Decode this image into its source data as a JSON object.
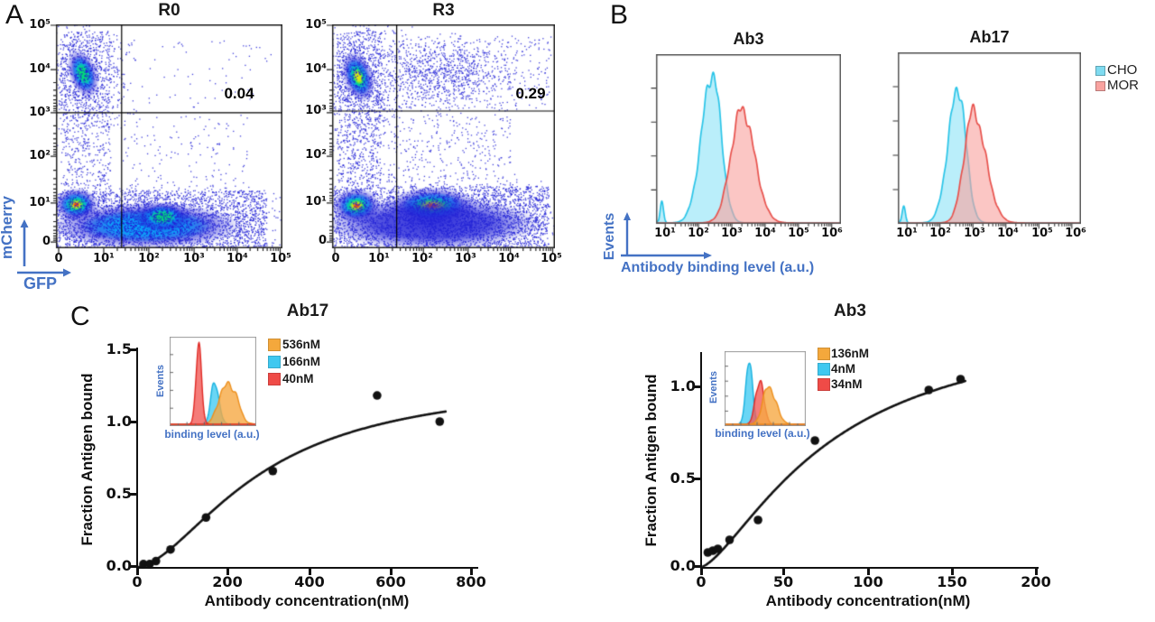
{
  "colors": {
    "accent_blue": "#4472C4",
    "cho_cyan": "#7FDBF0",
    "mor_red": "#F9A3A0",
    "flow_dot_blue": "#2323D7",
    "curve_black": "#111111",
    "inset_orange": "#F4A83C",
    "inset_cyan": "#3FC8F0",
    "inset_red": "#EF4B47"
  },
  "panels": {
    "A": {
      "label": "A",
      "ylabel": "mCherry",
      "xlabel": "GFP",
      "x_ticks": [
        "0",
        "10¹",
        "10²",
        "10³",
        "10⁴",
        "10⁵"
      ],
      "y_ticks": [
        "10⁵",
        "10⁴",
        "10³",
        "10²",
        "10¹",
        "0"
      ],
      "plots": [
        {
          "title": "R0",
          "quadrant_value": "0.04"
        },
        {
          "title": "R3",
          "quadrant_value": "0.29"
        }
      ]
    },
    "B": {
      "label": "B",
      "ylabel": "Events",
      "xlabel": "Antibody binding level (a.u.)",
      "x_ticks": [
        "10¹",
        "10²",
        "10³",
        "10⁴",
        "10⁵",
        "10⁶"
      ],
      "plots": [
        {
          "title": "Ab3"
        },
        {
          "title": "Ab17"
        }
      ],
      "legend": [
        {
          "label": "CHO",
          "color": "#7FDBF0"
        },
        {
          "label": "MOR",
          "color": "#F9A3A0"
        }
      ]
    },
    "C": {
      "label": "C",
      "left": {
        "title": "Ab17",
        "ylabel": "Fraction Antigen bound",
        "xlabel": "Antibody concentration(nM)",
        "y_ticks": [
          "1.5",
          "1.0",
          "0.5",
          "0.0"
        ],
        "x_ticks": [
          "0",
          "200",
          "400",
          "600",
          "800"
        ],
        "inset": {
          "ylabel": "Events",
          "xlabel": "binding level (a.u.)",
          "legend": [
            {
              "label": "536nM",
              "color": "#F4A83C"
            },
            {
              "label": "166nM",
              "color": "#3FC8F0"
            },
            {
              "label": "40nM",
              "color": "#EF4B47"
            }
          ]
        }
      },
      "right": {
        "title": "Ab3",
        "ylabel": "Fraction Antigen bound",
        "xlabel": "Antibody concentration(nM)",
        "y_ticks": [
          "1.0",
          "0.5",
          "0.0"
        ],
        "x_ticks": [
          "0",
          "50",
          "100",
          "150",
          "200"
        ],
        "inset": {
          "ylabel": "Events",
          "xlabel": "binding level (a.u.)",
          "legend": [
            {
              "label": "136nM",
              "color": "#F4A83C"
            },
            {
              "label": "4nM",
              "color": "#3FC8F0"
            },
            {
              "label": "34nM",
              "color": "#EF4B47"
            }
          ]
        }
      }
    }
  },
  "chart_data": [
    {
      "id": "flow_r0",
      "type": "scatter",
      "subtype": "flow-density",
      "title": "R0",
      "xlabel": "GFP",
      "ylabel": "mCherry",
      "x_tick_values": [
        "0",
        "1e1",
        "1e2",
        "1e3",
        "1e4",
        "1e5"
      ],
      "y_tick_values": [
        "1e5",
        "1e4",
        "1e3",
        "1e2",
        "1e1",
        "0"
      ],
      "quadrant_percent_upper_right": 0.04,
      "gates": {
        "vx": 0.29,
        "hy": 0.605
      },
      "clusters": [
        {
          "x": 0.12,
          "y": 0.78,
          "rx": 0.065,
          "ry": 0.115,
          "rot": -20,
          "i": 0.8
        },
        {
          "x": 0.09,
          "y": 0.195,
          "rx": 0.1,
          "ry": 0.075,
          "rot": 0,
          "i": 1.0
        },
        {
          "x": 0.4,
          "y": 0.1,
          "rx": 0.42,
          "ry": 0.105,
          "rot": 0,
          "i": 0.45
        },
        {
          "x": 0.47,
          "y": 0.14,
          "rx": 0.13,
          "ry": 0.07,
          "rot": 0,
          "i": 0.62
        }
      ],
      "scatter": [
        {
          "t": "u",
          "x0": 0.0,
          "x1": 0.93,
          "y0": 0.0,
          "y1": 0.26,
          "n": 2400
        },
        {
          "t": "u",
          "x0": 0.02,
          "x1": 0.24,
          "y0": 0.26,
          "y1": 0.97,
          "n": 650
        },
        {
          "t": "g",
          "cx": 0.12,
          "cy": 0.78,
          "sx": 0.1,
          "sy": 0.14,
          "n": 900
        },
        {
          "t": "u",
          "x0": 0.3,
          "x1": 0.95,
          "y0": 0.63,
          "y1": 0.93,
          "n": 60
        },
        {
          "t": "u",
          "x0": 0.3,
          "x1": 0.85,
          "y0": 0.26,
          "y1": 0.6,
          "n": 140
        },
        {
          "t": "g",
          "cx": 0.4,
          "cy": 0.12,
          "sx": 0.3,
          "sy": 0.07,
          "n": 1500
        }
      ]
    },
    {
      "id": "flow_r3",
      "type": "scatter",
      "subtype": "flow-density",
      "title": "R3",
      "xlabel": "GFP",
      "ylabel": "mCherry",
      "x_tick_values": [
        "0",
        "1e1",
        "1e2",
        "1e3",
        "1e4",
        "1e5"
      ],
      "y_tick_values": [
        "1e5",
        "1e4",
        "1e3",
        "1e2",
        "1e1",
        "0"
      ],
      "quadrant_percent_upper_right": 0.29,
      "gates": {
        "vx": 0.29,
        "hy": 0.613
      },
      "clusters": [
        {
          "x": 0.117,
          "y": 0.766,
          "rx": 0.07,
          "ry": 0.12,
          "rot": -20,
          "i": 0.88
        },
        {
          "x": 0.11,
          "y": 0.19,
          "rx": 0.11,
          "ry": 0.08,
          "rot": 0,
          "i": 1.0
        },
        {
          "x": 0.45,
          "y": 0.19,
          "rx": 0.2,
          "ry": 0.085,
          "rot": 0,
          "i": 1.0
        },
        {
          "x": 0.45,
          "y": 0.11,
          "rx": 0.48,
          "ry": 0.12,
          "rot": 0,
          "i": 0.42
        }
      ],
      "scatter": [
        {
          "t": "u",
          "x0": 0.0,
          "x1": 0.97,
          "y0": 0.0,
          "y1": 0.28,
          "n": 2600
        },
        {
          "t": "u",
          "x0": 0.02,
          "x1": 0.22,
          "y0": 0.28,
          "y1": 0.97,
          "n": 800
        },
        {
          "t": "g",
          "cx": 0.117,
          "cy": 0.77,
          "sx": 0.1,
          "sy": 0.15,
          "n": 900
        },
        {
          "t": "g",
          "cx": 0.5,
          "cy": 0.78,
          "sx": 0.14,
          "sy": 0.07,
          "n": 800
        },
        {
          "t": "u",
          "x0": 0.28,
          "x1": 0.98,
          "y0": 0.62,
          "y1": 0.95,
          "n": 350
        },
        {
          "t": "u",
          "x0": 0.25,
          "x1": 0.8,
          "y0": 0.28,
          "y1": 0.6,
          "n": 300
        },
        {
          "t": "g",
          "cx": 0.48,
          "cy": 0.13,
          "sx": 0.3,
          "sy": 0.08,
          "n": 1500
        }
      ]
    },
    {
      "id": "hist_ab3",
      "type": "area",
      "subtype": "flow-histogram",
      "title": "Ab3",
      "xlabel": "Antibody binding level (a.u.)",
      "ylabel": "Events",
      "x_range_log10": [
        1,
        6
      ],
      "series": [
        {
          "name": "CHO",
          "mu": 2.42,
          "sl": 0.33,
          "sr": 0.26,
          "h": 0.92,
          "spike": 0.13,
          "fill": "#8FE3F7",
          "stroke": "#2BC5E8"
        },
        {
          "name": "MOR",
          "mu": 3.3,
          "sl": 0.33,
          "sr": 0.38,
          "h": 0.7,
          "spike": 0,
          "fill": "#F9A3A0",
          "stroke": "#E8524D"
        }
      ]
    },
    {
      "id": "hist_ab17",
      "type": "area",
      "subtype": "flow-histogram",
      "title": "Ab17",
      "xlabel": "Antibody binding level (a.u.)",
      "ylabel": "Events",
      "x_range_log10": [
        1,
        6
      ],
      "series": [
        {
          "name": "CHO",
          "mu": 2.55,
          "sl": 0.3,
          "sr": 0.24,
          "h": 0.82,
          "spike": 0.1,
          "fill": "#8FE3F7",
          "stroke": "#2BC5E8"
        },
        {
          "name": "MOR",
          "mu": 3.0,
          "sl": 0.27,
          "sr": 0.38,
          "h": 0.68,
          "spike": 0,
          "fill": "#F9A3A0",
          "stroke": "#E8524D"
        }
      ]
    },
    {
      "id": "curve_ab17",
      "type": "scatter",
      "subtype": "binding-curve",
      "title": "Ab17",
      "xlabel": "Antibody concentration(nM)",
      "ylabel": "Fraction Antigen bound",
      "xlim": [
        0,
        800
      ],
      "ylim": [
        0,
        1.5
      ],
      "x_tick_values": [
        0,
        200,
        400,
        600,
        800
      ],
      "y_tick_values": [
        0.0,
        0.5,
        1.0,
        1.5
      ],
      "points": [
        [
          15,
          0.02
        ],
        [
          30,
          0.02
        ],
        [
          45,
          0.04
        ],
        [
          80,
          0.12
        ],
        [
          165,
          0.34
        ],
        [
          325,
          0.66
        ],
        [
          575,
          1.18
        ],
        [
          725,
          1.0
        ]
      ],
      "fit": {
        "top": 1.3,
        "ec50": 300,
        "hill": 1.7
      },
      "fit_x_end": 740,
      "inset_histogram": {
        "xlabel": "binding level (a.u.)",
        "ylabel": "Events",
        "peaks": [
          {
            "name": "166nM",
            "mu": 0.52,
            "sl": 0.045,
            "sr": 0.05,
            "h": 0.5,
            "fill": "#45CCF2",
            "stroke": "#18B2E0"
          },
          {
            "name": "536nM",
            "mu": 0.64,
            "sl": 0.08,
            "sr": 0.11,
            "h": 0.46,
            "bump": {
              "mu": 0.76,
              "s": 0.05,
              "h": 0.14
            },
            "fill": "#F6A944",
            "stroke": "#ED8F1C"
          },
          {
            "name": "40nM",
            "mu": 0.335,
            "sl": 0.032,
            "sr": 0.034,
            "h": 0.93,
            "fill": "#F25B57",
            "stroke": "#E02B26"
          }
        ]
      }
    },
    {
      "id": "curve_ab3",
      "type": "scatter",
      "subtype": "binding-curve",
      "title": "Ab3",
      "xlabel": "Antibody concentration(nM)",
      "ylabel": "Fraction Antigen bound",
      "xlim": [
        0,
        200
      ],
      "ylim": [
        0,
        1.19
      ],
      "x_tick_values": [
        0,
        50,
        100,
        150,
        200
      ],
      "y_tick_values": [
        0.0,
        0.5,
        1.0
      ],
      "points": [
        [
          4,
          0.08
        ],
        [
          7,
          0.09
        ],
        [
          10,
          0.1
        ],
        [
          17,
          0.15
        ],
        [
          34,
          0.26
        ],
        [
          68,
          0.7
        ],
        [
          136,
          0.98
        ],
        [
          155,
          1.04
        ]
      ],
      "fit": {
        "top": 1.4,
        "ec50": 78,
        "hill": 1.45
      },
      "fit_x_end": 158,
      "inset_histogram": {
        "xlabel": "binding level (a.u.)",
        "ylabel": "Events",
        "peaks": [
          {
            "name": "4nM",
            "mu": 0.3,
            "sl": 0.04,
            "sr": 0.042,
            "h": 0.93,
            "fill": "#45CCF2",
            "stroke": "#18B2E0"
          },
          {
            "name": "34nM",
            "mu": 0.43,
            "sl": 0.05,
            "sr": 0.052,
            "h": 0.66,
            "fill": "#F25B57",
            "stroke": "#E02B26"
          },
          {
            "name": "136nM",
            "mu": 0.54,
            "sl": 0.07,
            "sr": 0.09,
            "h": 0.56,
            "fill": "#F6A944",
            "stroke": "#ED8F1C"
          }
        ]
      }
    }
  ]
}
